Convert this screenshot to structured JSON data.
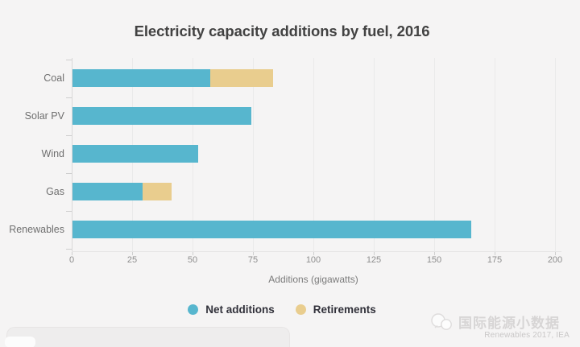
{
  "chart_data": {
    "type": "bar",
    "orientation": "horizontal",
    "stacked": true,
    "title": "Electricity capacity additions by fuel, 2016",
    "categories": [
      "Coal",
      "Solar PV",
      "Wind",
      "Gas",
      "Renewables"
    ],
    "series": [
      {
        "name": "Net additions",
        "color": "#57b6ce",
        "values": [
          57,
          74,
          52,
          29,
          165
        ]
      },
      {
        "name": "Retirements",
        "color": "#e9cd8e",
        "values": [
          26,
          0,
          0,
          12,
          0
        ]
      }
    ],
    "xlabel": "Additions (gigawatts)",
    "ylabel": "",
    "xlim": [
      0,
      200
    ],
    "xticks": [
      0,
      25,
      50,
      75,
      100,
      125,
      150,
      175,
      200
    ],
    "grid": true,
    "legend_position": "bottom"
  },
  "legend": {
    "items": [
      {
        "label": "Net additions",
        "color": "#57b6ce"
      },
      {
        "label": "Retirements",
        "color": "#e9cd8e"
      }
    ]
  },
  "watermark": {
    "account_name": "国际能源小数据",
    "logo": "wechat-bubbles-icon"
  },
  "source": "Renewables 2017, IEA",
  "colors": {
    "background": "#f5f4f4",
    "net_additions": "#57b6ce",
    "retirements": "#e9cd8e",
    "gridline": "#eaeaea",
    "title_text": "#424242"
  }
}
